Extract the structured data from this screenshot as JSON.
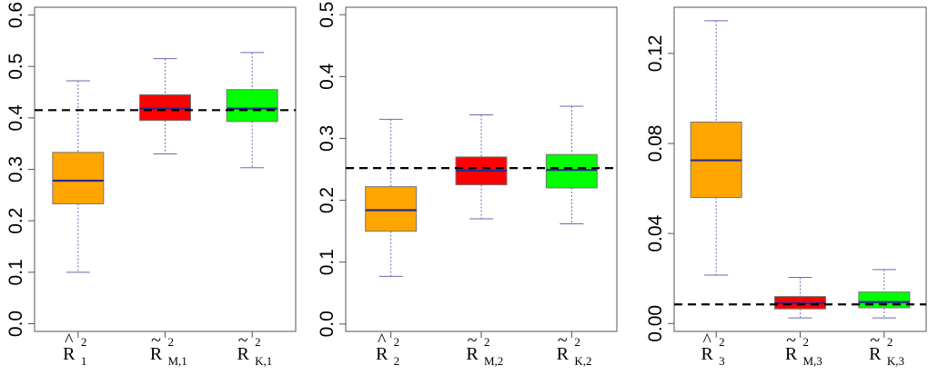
{
  "chart_data": [
    {
      "type": "box",
      "ylim": [
        -0.015,
        0.615
      ],
      "yticks": [
        "0.0",
        "0.1",
        "0.2",
        "0.3",
        "0.4",
        "0.5",
        "0.6"
      ],
      "reference_line": 0.415,
      "categories": [
        {
          "base": "R",
          "accent": "^",
          "sup": "2",
          "sub": "1"
        },
        {
          "base": "R",
          "accent": "~",
          "sup": "2",
          "sub": "M,1"
        },
        {
          "base": "R",
          "accent": "~",
          "sup": "2",
          "sub": "K,1"
        }
      ],
      "boxes": [
        {
          "color": "#FFA500",
          "whisker_low": 0.1,
          "q1": 0.233,
          "median": 0.278,
          "q3": 0.333,
          "whisker_high": 0.472
        },
        {
          "color": "#FF0000",
          "whisker_low": 0.33,
          "q1": 0.395,
          "median": 0.418,
          "q3": 0.445,
          "whisker_high": 0.515
        },
        {
          "color": "#00FF00",
          "whisker_low": 0.303,
          "q1": 0.393,
          "median": 0.418,
          "q3": 0.455,
          "whisker_high": 0.527
        }
      ]
    },
    {
      "type": "box",
      "ylim": [
        -0.012,
        0.512
      ],
      "yticks": [
        "0.0",
        "0.1",
        "0.2",
        "0.3",
        "0.4",
        "0.5"
      ],
      "reference_line": 0.252,
      "categories": [
        {
          "base": "R",
          "accent": "^",
          "sup": "2",
          "sub": "2"
        },
        {
          "base": "R",
          "accent": "~",
          "sup": "2",
          "sub": "M,2"
        },
        {
          "base": "R",
          "accent": "~",
          "sup": "2",
          "sub": "K,2"
        }
      ],
      "boxes": [
        {
          "color": "#FFA500",
          "whisker_low": 0.077,
          "q1": 0.15,
          "median": 0.184,
          "q3": 0.222,
          "whisker_high": 0.331
        },
        {
          "color": "#FF0000",
          "whisker_low": 0.17,
          "q1": 0.225,
          "median": 0.248,
          "q3": 0.27,
          "whisker_high": 0.338
        },
        {
          "color": "#00FF00",
          "whisker_low": 0.162,
          "q1": 0.22,
          "median": 0.249,
          "q3": 0.274,
          "whisker_high": 0.352
        }
      ]
    },
    {
      "type": "box",
      "ylim": [
        -0.0035,
        0.1405
      ],
      "yticks": [
        "0.00",
        "0.04",
        "0.08",
        "0.12"
      ],
      "reference_line": 0.0085,
      "categories": [
        {
          "base": "R",
          "accent": "^",
          "sup": "2",
          "sub": "3"
        },
        {
          "base": "R",
          "accent": "~",
          "sup": "2",
          "sub": "M,3"
        },
        {
          "base": "R",
          "accent": "~",
          "sup": "2",
          "sub": "K,3"
        }
      ],
      "boxes": [
        {
          "color": "#FFA500",
          "whisker_low": 0.0215,
          "q1": 0.056,
          "median": 0.0725,
          "q3": 0.0895,
          "whisker_high": 0.1345
        },
        {
          "color": "#FF0000",
          "whisker_low": 0.0025,
          "q1": 0.0065,
          "median": 0.009,
          "q3": 0.012,
          "whisker_high": 0.0205
        },
        {
          "color": "#00FF00",
          "whisker_low": 0.0025,
          "q1": 0.007,
          "median": 0.0095,
          "q3": 0.014,
          "whisker_high": 0.024
        }
      ]
    }
  ]
}
